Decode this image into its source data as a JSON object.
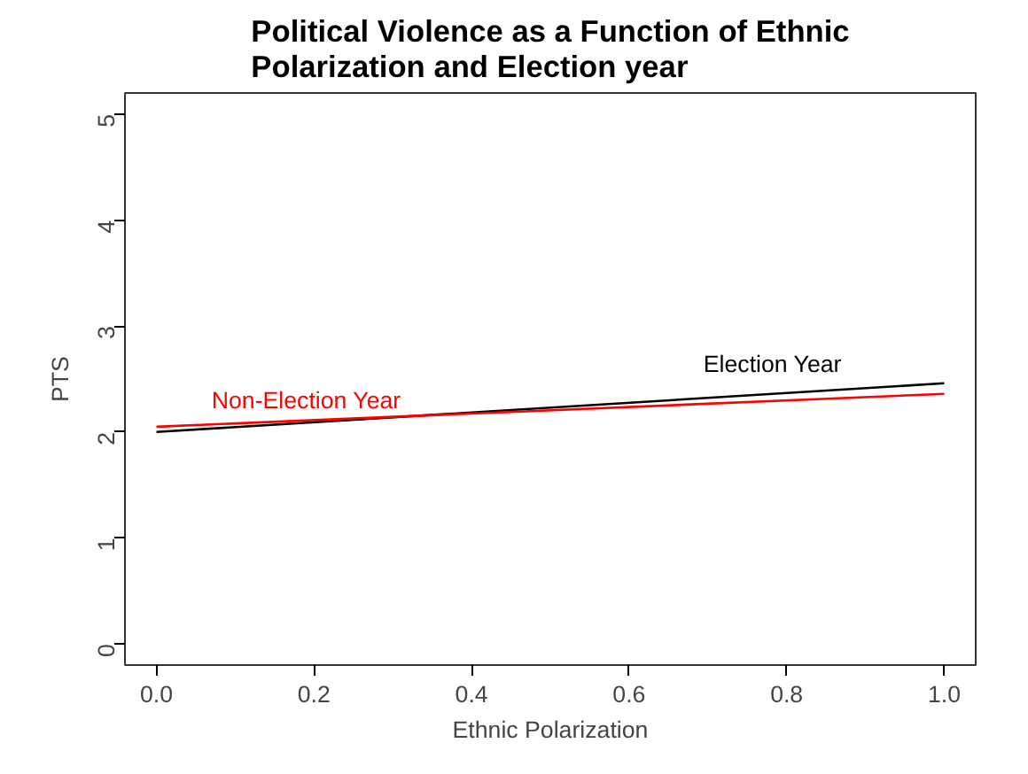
{
  "chart_data": {
    "type": "line",
    "title": "Political Violence as a Function of Ethnic\nPolarization and Election year",
    "xlabel": "Ethnic Polarization",
    "ylabel": "PTS",
    "x": [
      0.0,
      1.0
    ],
    "series": [
      {
        "name": "Election Year",
        "color": "#000000",
        "values": [
          2.0,
          2.46
        ]
      },
      {
        "name": "Non-Election Year",
        "color": "#ff0000",
        "values": [
          2.05,
          2.36
        ]
      }
    ],
    "xlim": [
      -0.04,
      1.04
    ],
    "ylim": [
      -0.2,
      5.2
    ],
    "xticks": [
      {
        "value": 0,
        "label": "0.0"
      },
      {
        "value": 0.2,
        "label": "0.2"
      },
      {
        "value": 0.4,
        "label": "0.4"
      },
      {
        "value": 0.6,
        "label": "0.6"
      },
      {
        "value": 0.8,
        "label": "0.8"
      },
      {
        "value": 1,
        "label": "1.0"
      }
    ],
    "yticks": [
      0,
      1,
      2,
      3,
      4,
      5
    ],
    "grid": false,
    "legend": false
  }
}
